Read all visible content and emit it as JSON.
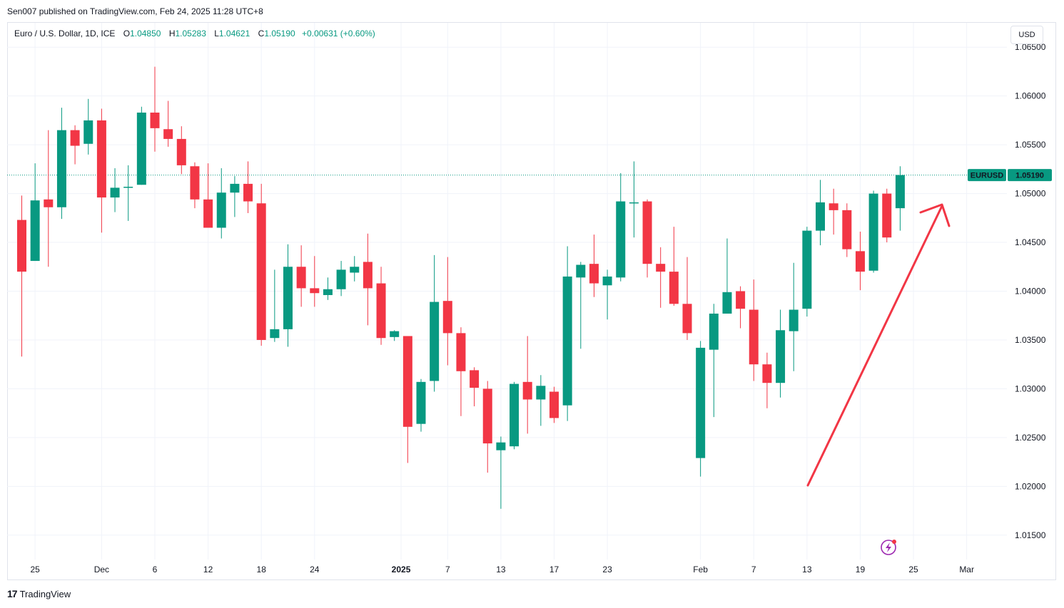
{
  "header": {
    "published_caption": "Sen007 published on TradingView.com, Feb 24, 2025 11:28 UTC+8"
  },
  "legend": {
    "symbol_text": "Euro / U.S. Dollar, 1D, ICE",
    "o_label": "O",
    "o_value": "1.04850",
    "h_label": "H",
    "h_value": "1.05283",
    "l_label": "L",
    "l_value": "1.04621",
    "c_label": "C",
    "c_value": "1.05190",
    "change": "+0.00631 (+0.60%)"
  },
  "currency_button": "USD",
  "price_tag": {
    "symbol": "EURUSD",
    "value": "1.05190"
  },
  "footer": {
    "brand": "TradingView"
  },
  "colors": {
    "up": "#089981",
    "down": "#f23645",
    "grid": "#f0f3fa",
    "arrow": "#f23645",
    "tag": "#089981"
  },
  "chart_data": {
    "type": "candlestick",
    "y_axis": {
      "min": 1.0125,
      "max": 1.0675,
      "ticks": [
        "1.06500",
        "1.06000",
        "1.05500",
        "1.05000",
        "1.04500",
        "1.04000",
        "1.03500",
        "1.03000",
        "1.02500",
        "1.02000",
        "1.01500"
      ]
    },
    "x_labels": [
      {
        "label": "25",
        "bar": 1
      },
      {
        "label": "Dec",
        "bar": 6
      },
      {
        "label": "6",
        "bar": 10
      },
      {
        "label": "12",
        "bar": 14
      },
      {
        "label": "18",
        "bar": 18
      },
      {
        "label": "24",
        "bar": 22
      },
      {
        "label": "2025",
        "bar": 28.5,
        "bold": true
      },
      {
        "label": "7",
        "bar": 32
      },
      {
        "label": "13",
        "bar": 36
      },
      {
        "label": "17",
        "bar": 40
      },
      {
        "label": "23",
        "bar": 44
      },
      {
        "label": "Feb",
        "bar": 51
      },
      {
        "label": "7",
        "bar": 55
      },
      {
        "label": "13",
        "bar": 59
      },
      {
        "label": "19",
        "bar": 63
      },
      {
        "label": "25",
        "bar": 67
      },
      {
        "label": "Mar",
        "bar": 71
      }
    ],
    "last_close": 1.0519,
    "candles": [
      {
        "o": 1.0473,
        "h": 1.0498,
        "l": 1.0333,
        "c": 1.042
      },
      {
        "o": 1.0431,
        "h": 1.0531,
        "l": 1.0431,
        "c": 1.0493
      },
      {
        "o": 1.0494,
        "h": 1.0565,
        "l": 1.0425,
        "c": 1.0486
      },
      {
        "o": 1.0486,
        "h": 1.0588,
        "l": 1.0474,
        "c": 1.0565
      },
      {
        "o": 1.0565,
        "h": 1.057,
        "l": 1.053,
        "c": 1.0549
      },
      {
        "o": 1.0551,
        "h": 1.0597,
        "l": 1.054,
        "c": 1.0575
      },
      {
        "o": 1.0575,
        "h": 1.0587,
        "l": 1.046,
        "c": 1.0496
      },
      {
        "o": 1.0496,
        "h": 1.0526,
        "l": 1.0481,
        "c": 1.0506
      },
      {
        "o": 1.0506,
        "h": 1.0529,
        "l": 1.0472,
        "c": 1.0507
      },
      {
        "o": 1.0509,
        "h": 1.0589,
        "l": 1.0509,
        "c": 1.0583
      },
      {
        "o": 1.0583,
        "h": 1.063,
        "l": 1.0543,
        "c": 1.0567
      },
      {
        "o": 1.0566,
        "h": 1.0595,
        "l": 1.0548,
        "c": 1.0556
      },
      {
        "o": 1.0556,
        "h": 1.0569,
        "l": 1.052,
        "c": 1.0529
      },
      {
        "o": 1.0528,
        "h": 1.0532,
        "l": 1.0485,
        "c": 1.0494
      },
      {
        "o": 1.0494,
        "h": 1.0531,
        "l": 1.0465,
        "c": 1.0465
      },
      {
        "o": 1.0465,
        "h": 1.0526,
        "l": 1.0454,
        "c": 1.0501
      },
      {
        "o": 1.0501,
        "h": 1.0518,
        "l": 1.0476,
        "c": 1.051
      },
      {
        "o": 1.051,
        "h": 1.0533,
        "l": 1.048,
        "c": 1.0492
      },
      {
        "o": 1.049,
        "h": 1.051,
        "l": 1.0344,
        "c": 1.035
      },
      {
        "o": 1.0352,
        "h": 1.0422,
        "l": 1.0348,
        "c": 1.0361
      },
      {
        "o": 1.0361,
        "h": 1.0448,
        "l": 1.0343,
        "c": 1.0425
      },
      {
        "o": 1.0425,
        "h": 1.0447,
        "l": 1.0384,
        "c": 1.0403
      },
      {
        "o": 1.0403,
        "h": 1.0436,
        "l": 1.0384,
        "c": 1.0398
      },
      {
        "o": 1.0396,
        "h": 1.0414,
        "l": 1.0391,
        "c": 1.0402
      },
      {
        "o": 1.0402,
        "h": 1.0431,
        "l": 1.0395,
        "c": 1.0422
      },
      {
        "o": 1.0419,
        "h": 1.0436,
        "l": 1.041,
        "c": 1.0425
      },
      {
        "o": 1.043,
        "h": 1.0459,
        "l": 1.0365,
        "c": 1.0403
      },
      {
        "o": 1.0408,
        "h": 1.0425,
        "l": 1.0345,
        "c": 1.0352
      },
      {
        "o": 1.0353,
        "h": 1.036,
        "l": 1.0349,
        "c": 1.0359
      },
      {
        "o": 1.0354,
        "h": 1.0354,
        "l": 1.0224,
        "c": 1.0261
      },
      {
        "o": 1.0264,
        "h": 1.031,
        "l": 1.0256,
        "c": 1.0307
      },
      {
        "o": 1.0308,
        "h": 1.0437,
        "l": 1.0297,
        "c": 1.0389
      },
      {
        "o": 1.039,
        "h": 1.0435,
        "l": 1.0324,
        "c": 1.0357
      },
      {
        "o": 1.0357,
        "h": 1.0363,
        "l": 1.0272,
        "c": 1.0318
      },
      {
        "o": 1.0319,
        "h": 1.0322,
        "l": 1.0282,
        "c": 1.0301
      },
      {
        "o": 1.03,
        "h": 1.0308,
        "l": 1.0214,
        "c": 1.0244
      },
      {
        "o": 1.0237,
        "h": 1.0251,
        "l": 1.0177,
        "c": 1.0245
      },
      {
        "o": 1.0241,
        "h": 1.0307,
        "l": 1.0238,
        "c": 1.0305
      },
      {
        "o": 1.0307,
        "h": 1.0354,
        "l": 1.0254,
        "c": 1.0289
      },
      {
        "o": 1.0289,
        "h": 1.0314,
        "l": 1.0262,
        "c": 1.0303
      },
      {
        "o": 1.0297,
        "h": 1.0302,
        "l": 1.0265,
        "c": 1.027
      },
      {
        "o": 1.0283,
        "h": 1.0446,
        "l": 1.0267,
        "c": 1.0415
      },
      {
        "o": 1.0414,
        "h": 1.043,
        "l": 1.0341,
        "c": 1.0427
      },
      {
        "o": 1.0428,
        "h": 1.0458,
        "l": 1.0394,
        "c": 1.0408
      },
      {
        "o": 1.0406,
        "h": 1.0422,
        "l": 1.0371,
        "c": 1.0415
      },
      {
        "o": 1.0414,
        "h": 1.0521,
        "l": 1.041,
        "c": 1.0492
      },
      {
        "o": 1.0491,
        "h": 1.0533,
        "l": 1.0455,
        "c": 1.0491
      },
      {
        "o": 1.0492,
        "h": 1.0494,
        "l": 1.0414,
        "c": 1.0428
      },
      {
        "o": 1.0428,
        "h": 1.0445,
        "l": 1.0383,
        "c": 1.042
      },
      {
        "o": 1.042,
        "h": 1.0466,
        "l": 1.0385,
        "c": 1.0387
      },
      {
        "o": 1.0387,
        "h": 1.0435,
        "l": 1.035,
        "c": 1.0357
      },
      {
        "o": 1.0229,
        "h": 1.0349,
        "l": 1.021,
        "c": 1.0342
      },
      {
        "o": 1.034,
        "h": 1.0387,
        "l": 1.0271,
        "c": 1.0377
      },
      {
        "o": 1.0377,
        "h": 1.0454,
        "l": 1.0377,
        "c": 1.0399
      },
      {
        "o": 1.04,
        "h": 1.0405,
        "l": 1.0362,
        "c": 1.0382
      },
      {
        "o": 1.0381,
        "h": 1.0412,
        "l": 1.0308,
        "c": 1.0325
      },
      {
        "o": 1.0325,
        "h": 1.0337,
        "l": 1.028,
        "c": 1.0306
      },
      {
        "o": 1.0306,
        "h": 1.0381,
        "l": 1.0291,
        "c": 1.036
      },
      {
        "o": 1.0359,
        "h": 1.0429,
        "l": 1.0318,
        "c": 1.0381
      },
      {
        "o": 1.0382,
        "h": 1.0466,
        "l": 1.0374,
        "c": 1.0462
      },
      {
        "o": 1.0462,
        "h": 1.0514,
        "l": 1.0447,
        "c": 1.0491
      },
      {
        "o": 1.049,
        "h": 1.0505,
        "l": 1.0458,
        "c": 1.0483
      },
      {
        "o": 1.0483,
        "h": 1.049,
        "l": 1.0435,
        "c": 1.0443
      },
      {
        "o": 1.0441,
        "h": 1.0461,
        "l": 1.0401,
        "c": 1.042
      },
      {
        "o": 1.0421,
        "h": 1.0503,
        "l": 1.0419,
        "c": 1.05
      },
      {
        "o": 1.05,
        "h": 1.0505,
        "l": 1.045,
        "c": 1.0455
      },
      {
        "o": 1.0485,
        "h": 1.0528,
        "l": 1.0462,
        "c": 1.0519
      }
    ]
  }
}
